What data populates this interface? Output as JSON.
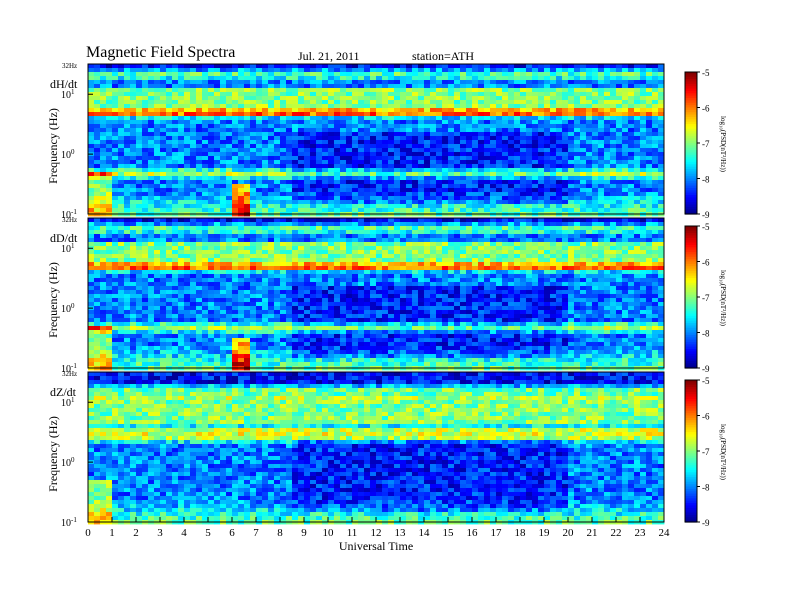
{
  "header": {
    "title": "Magnetic  Field  Spectra",
    "date": "Jul.  21, 2011",
    "station": "station=ATH"
  },
  "chart_data": {
    "type": "heatmap",
    "title": "Magnetic  Field  Spectra",
    "xlabel": "Universal Time",
    "xlim": [
      0,
      24
    ],
    "x_ticks": [
      "0",
      "1",
      "2",
      "3",
      "4",
      "5",
      "6",
      "7",
      "8",
      "9",
      "10",
      "11",
      "12",
      "13",
      "14",
      "15",
      "16",
      "17",
      "18",
      "19",
      "20",
      "21",
      "22",
      "23",
      "24"
    ],
    "y_scale": "log",
    "ylim_hz": [
      0.1,
      32
    ],
    "ylabel": "Frequency  (Hz)",
    "top_label": "32Hz",
    "y_ticks": [
      {
        "value": 10,
        "label": "10",
        "exp": "1"
      },
      {
        "value": 1,
        "label": "10",
        "exp": "0"
      },
      {
        "value": 0.1,
        "label": "10",
        "exp": "-1"
      }
    ],
    "colorbar": {
      "label": "log₁₀(PSD(nT²/Hz))",
      "range": [
        -9,
        -5
      ],
      "ticks": [
        "-5",
        "-6",
        "-7",
        "-8",
        "-9"
      ],
      "colormap": "jet"
    },
    "panels": [
      {
        "name": "dH/dt",
        "bands_hz": [
          0.5,
          5,
          22
        ]
      },
      {
        "name": "dD/dt",
        "bands_hz": [
          0.5,
          5,
          22
        ]
      },
      {
        "name": "dZ/dt",
        "bands_hz": [
          2.7,
          3.5,
          15
        ]
      }
    ]
  }
}
